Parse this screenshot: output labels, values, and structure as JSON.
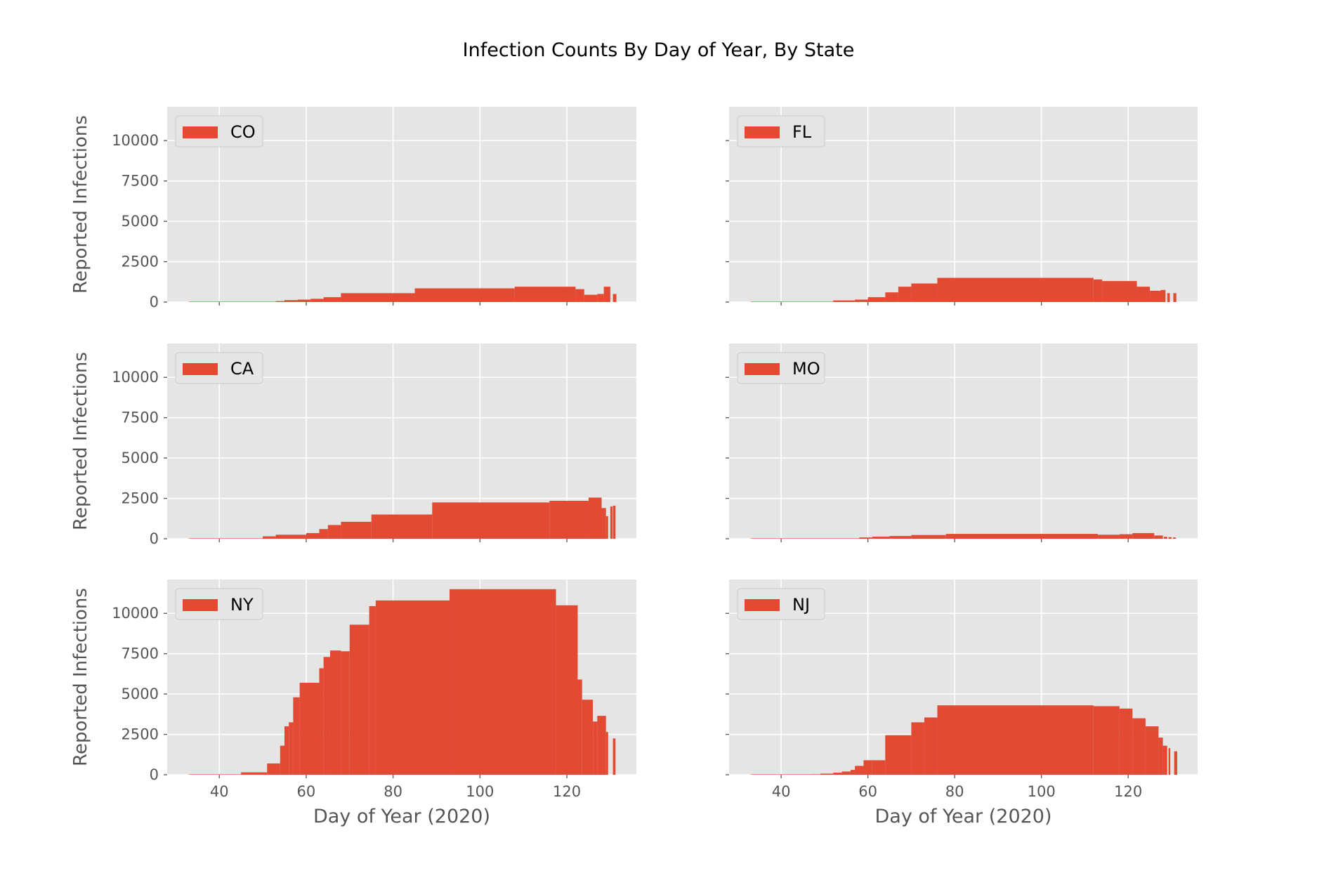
{
  "figure": {
    "title": "Infection Counts By Day of Year, By State"
  },
  "colors": {
    "bar": "#e24a33",
    "panel_bg": "#e5e5e5",
    "grid": "#ffffff",
    "tick_text": "#555555",
    "legend_bg": "#e5e5e5",
    "legend_border": "#cccccc"
  },
  "chart_data": [
    {
      "type": "bar",
      "legend": "CO",
      "xlabel": "",
      "ylabel": "Reported Infections",
      "xlim": [
        28,
        136
      ],
      "ylim": [
        0,
        12100
      ],
      "xticks": [
        40,
        60,
        80,
        100,
        120
      ],
      "show_xtick_labels": false,
      "yticks": [
        0,
        2500,
        5000,
        7500,
        10000
      ],
      "show_ytick_labels": true,
      "grid": true,
      "legend_position": "upper-left",
      "bars": [
        {
          "x": [
            33,
            53
          ],
          "y": 0
        },
        {
          "x": [
            53,
            55
          ],
          "y": 60
        },
        {
          "x": [
            55,
            58
          ],
          "y": 120
        },
        {
          "x": [
            58,
            61
          ],
          "y": 150
        },
        {
          "x": [
            61,
            64
          ],
          "y": 200
        },
        {
          "x": [
            64,
            68
          ],
          "y": 300
        },
        {
          "x": [
            68,
            85
          ],
          "y": 550
        },
        {
          "x": [
            85,
            108
          ],
          "y": 850
        },
        {
          "x": [
            108,
            122
          ],
          "y": 950
        },
        {
          "x": [
            122,
            124
          ],
          "y": 800
        },
        {
          "x": [
            124,
            127
          ],
          "y": 450
        },
        {
          "x": [
            127,
            128.5
          ],
          "y": 500
        },
        {
          "x": [
            128.5,
            130
          ],
          "y": 950
        },
        {
          "x": [
            130.6,
            131.4
          ],
          "y": 500
        }
      ]
    },
    {
      "type": "bar",
      "legend": "FL",
      "xlabel": "",
      "ylabel": "",
      "xlim": [
        28,
        136
      ],
      "ylim": [
        0,
        12100
      ],
      "xticks": [
        40,
        60,
        80,
        100,
        120
      ],
      "show_xtick_labels": false,
      "yticks": [
        0,
        2500,
        5000,
        7500,
        10000
      ],
      "show_ytick_labels": false,
      "grid": true,
      "legend_position": "upper-left",
      "bars": [
        {
          "x": [
            33,
            52
          ],
          "y": 0
        },
        {
          "x": [
            52,
            57
          ],
          "y": 100
        },
        {
          "x": [
            57,
            60
          ],
          "y": 150
        },
        {
          "x": [
            60,
            64
          ],
          "y": 300
        },
        {
          "x": [
            64,
            67
          ],
          "y": 600
        },
        {
          "x": [
            67,
            70
          ],
          "y": 950
        },
        {
          "x": [
            70,
            76
          ],
          "y": 1150
        },
        {
          "x": [
            76,
            112
          ],
          "y": 1500
        },
        {
          "x": [
            112,
            114
          ],
          "y": 1400
        },
        {
          "x": [
            114,
            122
          ],
          "y": 1300
        },
        {
          "x": [
            122,
            125
          ],
          "y": 950
        },
        {
          "x": [
            125,
            127.5
          ],
          "y": 700
        },
        {
          "x": [
            127.5,
            128.6
          ],
          "y": 750
        },
        {
          "x": [
            129,
            129.6
          ],
          "y": 550
        },
        {
          "x": [
            130.4,
            131.1
          ],
          "y": 550
        }
      ]
    },
    {
      "type": "bar",
      "legend": "CA",
      "xlabel": "",
      "ylabel": "Reported Infections",
      "xlim": [
        28,
        136
      ],
      "ylim": [
        0,
        12100
      ],
      "xticks": [
        40,
        60,
        80,
        100,
        120
      ],
      "show_xtick_labels": false,
      "yticks": [
        0,
        2500,
        5000,
        7500,
        10000
      ],
      "show_ytick_labels": true,
      "grid": true,
      "legend_position": "upper-left",
      "bars": [
        {
          "x": [
            33,
            50
          ],
          "y": 0
        },
        {
          "x": [
            50,
            53
          ],
          "y": 150
        },
        {
          "x": [
            53,
            60
          ],
          "y": 250
        },
        {
          "x": [
            60,
            63
          ],
          "y": 350
        },
        {
          "x": [
            63,
            65
          ],
          "y": 600
        },
        {
          "x": [
            65,
            68
          ],
          "y": 850
        },
        {
          "x": [
            68,
            75
          ],
          "y": 1050
        },
        {
          "x": [
            75,
            89
          ],
          "y": 1500
        },
        {
          "x": [
            89,
            116
          ],
          "y": 2250
        },
        {
          "x": [
            116,
            125
          ],
          "y": 2350
        },
        {
          "x": [
            125,
            128
          ],
          "y": 2550
        },
        {
          "x": [
            128,
            129
          ],
          "y": 1900
        },
        {
          "x": [
            129,
            129.5
          ],
          "y": 1400
        },
        {
          "x": [
            130,
            130.5
          ],
          "y": 2000
        },
        {
          "x": [
            130.6,
            131.2
          ],
          "y": 2050
        }
      ]
    },
    {
      "type": "bar",
      "legend": "MO",
      "xlabel": "",
      "ylabel": "",
      "xlim": [
        28,
        136
      ],
      "ylim": [
        0,
        12100
      ],
      "xticks": [
        40,
        60,
        80,
        100,
        120
      ],
      "show_xtick_labels": false,
      "yticks": [
        0,
        2500,
        5000,
        7500,
        10000
      ],
      "show_ytick_labels": false,
      "grid": true,
      "legend_position": "upper-left",
      "bars": [
        {
          "x": [
            33,
            58
          ],
          "y": 0
        },
        {
          "x": [
            58,
            61
          ],
          "y": 80
        },
        {
          "x": [
            61,
            65
          ],
          "y": 130
        },
        {
          "x": [
            65,
            70
          ],
          "y": 170
        },
        {
          "x": [
            70,
            78
          ],
          "y": 230
        },
        {
          "x": [
            78,
            113
          ],
          "y": 300
        },
        {
          "x": [
            113,
            118
          ],
          "y": 250
        },
        {
          "x": [
            118,
            121
          ],
          "y": 280
        },
        {
          "x": [
            121,
            126
          ],
          "y": 350
        },
        {
          "x": [
            126,
            128
          ],
          "y": 200
        },
        {
          "x": [
            128.2,
            129
          ],
          "y": 120
        },
        {
          "x": [
            129.3,
            130
          ],
          "y": 100
        },
        {
          "x": [
            130.3,
            131
          ],
          "y": 80
        }
      ]
    },
    {
      "type": "bar",
      "legend": "NY",
      "xlabel": "Day of Year (2020)",
      "ylabel": "Reported Infections",
      "xlim": [
        28,
        136
      ],
      "ylim": [
        0,
        12100
      ],
      "xticks": [
        40,
        60,
        80,
        100,
        120
      ],
      "show_xtick_labels": true,
      "yticks": [
        0,
        2500,
        5000,
        7500,
        10000
      ],
      "show_ytick_labels": true,
      "grid": true,
      "legend_position": "upper-left",
      "bars": [
        {
          "x": [
            33,
            45
          ],
          "y": 0
        },
        {
          "x": [
            45,
            51
          ],
          "y": 150
        },
        {
          "x": [
            51,
            54
          ],
          "y": 700
        },
        {
          "x": [
            54,
            55
          ],
          "y": 1800
        },
        {
          "x": [
            55,
            56
          ],
          "y": 3000
        },
        {
          "x": [
            56,
            57
          ],
          "y": 3250
        },
        {
          "x": [
            57,
            58.5
          ],
          "y": 4800
        },
        {
          "x": [
            58.5,
            63
          ],
          "y": 5700
        },
        {
          "x": [
            63,
            64
          ],
          "y": 6600
        },
        {
          "x": [
            64,
            65.5
          ],
          "y": 7300
        },
        {
          "x": [
            65.5,
            68
          ],
          "y": 7700
        },
        {
          "x": [
            68,
            70
          ],
          "y": 7650
        },
        {
          "x": [
            70,
            74.5
          ],
          "y": 9300
        },
        {
          "x": [
            74.5,
            76
          ],
          "y": 10450
        },
        {
          "x": [
            76,
            82
          ],
          "y": 10800
        },
        {
          "x": [
            82,
            93
          ],
          "y": 10800
        },
        {
          "x": [
            93,
            117.5
          ],
          "y": 11500
        },
        {
          "x": [
            117.5,
            122.5
          ],
          "y": 10500
        },
        {
          "x": [
            122.5,
            123.5
          ],
          "y": 5900
        },
        {
          "x": [
            123.5,
            126
          ],
          "y": 4650
        },
        {
          "x": [
            126,
            127
          ],
          "y": 3300
        },
        {
          "x": [
            127,
            129
          ],
          "y": 3650
        },
        {
          "x": [
            129,
            129.5
          ],
          "y": 2650
        },
        {
          "x": [
            130.6,
            131.2
          ],
          "y": 2250
        }
      ]
    },
    {
      "type": "bar",
      "legend": "NJ",
      "xlabel": "Day of Year (2020)",
      "ylabel": "",
      "xlim": [
        28,
        136
      ],
      "ylim": [
        0,
        12100
      ],
      "xticks": [
        40,
        60,
        80,
        100,
        120
      ],
      "show_xtick_labels": true,
      "yticks": [
        0,
        2500,
        5000,
        7500,
        10000
      ],
      "show_ytick_labels": false,
      "grid": true,
      "legend_position": "upper-left",
      "bars": [
        {
          "x": [
            33,
            47
          ],
          "y": 0
        },
        {
          "x": [
            47,
            49
          ],
          "y": 30
        },
        {
          "x": [
            49,
            52
          ],
          "y": 70
        },
        {
          "x": [
            52,
            54
          ],
          "y": 130
        },
        {
          "x": [
            54,
            56
          ],
          "y": 200
        },
        {
          "x": [
            56,
            57
          ],
          "y": 300
        },
        {
          "x": [
            57,
            59
          ],
          "y": 550
        },
        {
          "x": [
            59,
            61
          ],
          "y": 900
        },
        {
          "x": [
            61,
            64
          ],
          "y": 900
        },
        {
          "x": [
            64,
            70
          ],
          "y": 2450
        },
        {
          "x": [
            70,
            73
          ],
          "y": 3250
        },
        {
          "x": [
            73,
            76
          ],
          "y": 3550
        },
        {
          "x": [
            76,
            112
          ],
          "y": 4300
        },
        {
          "x": [
            112,
            118
          ],
          "y": 4250
        },
        {
          "x": [
            118,
            121
          ],
          "y": 4100
        },
        {
          "x": [
            121,
            124
          ],
          "y": 3500
        },
        {
          "x": [
            124,
            127
          ],
          "y": 3000
        },
        {
          "x": [
            127,
            128
          ],
          "y": 2300
        },
        {
          "x": [
            128,
            129
          ],
          "y": 1800
        },
        {
          "x": [
            129.3,
            129.7
          ],
          "y": 1650
        },
        {
          "x": [
            130.6,
            131.3
          ],
          "y": 1450
        }
      ]
    }
  ]
}
